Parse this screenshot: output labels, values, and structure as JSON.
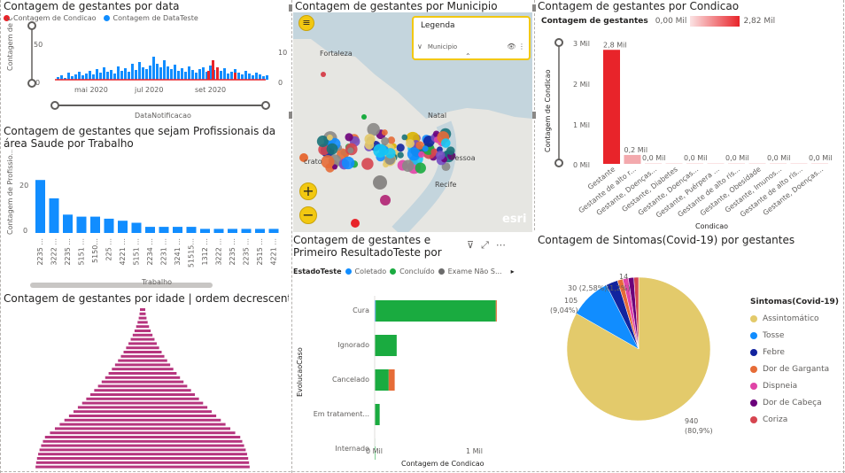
{
  "timeline": {
    "title": "Contagem de gestantes por data",
    "legend": [
      {
        "label": "Contagem de Condicao",
        "color": "#e8242a"
      },
      {
        "label": "Contagem de DataTeste",
        "color": "#118dff"
      }
    ],
    "ylabel": "Contagem de Co...",
    "yticks_left": [
      "50",
      "0"
    ],
    "yticks_right": [
      "10",
      "0"
    ],
    "xticks": [
      "mai 2020",
      "jul 2020",
      "set 2020"
    ],
    "xlabel": "DataNotificacao"
  },
  "map": {
    "title": "Contagem de gestantes por Municipio",
    "legend_title": "Legenda",
    "legend_item": "Municipio",
    "labels": [
      "Fortaleza",
      "Natal",
      "Pessoa",
      "Recife",
      "crato"
    ],
    "brand": "esri",
    "zoom_in": "+",
    "zoom_out": "−"
  },
  "condicao": {
    "title": "Contagem de gestantes por Condicao",
    "scale_label": "Contagem de gestantes",
    "scale_min": "0,00 Mil",
    "scale_max": "2,82 Mil",
    "ylabel": "Contagem de Condicao",
    "xlabel": "Condicao",
    "yticks": [
      "3 Mil",
      "2 Mil",
      "1 Mil",
      "0 Mil"
    ],
    "data_labels": [
      "2,8 Mil",
      "0,2 Mil",
      "0,0 Mil",
      "0,0 Mil",
      "0,0 Mil",
      "0,0 Mil",
      "0,0 Mil",
      "0,0 Mil",
      "0,0 Mil",
      "0,0 Mil"
    ],
    "categories": [
      "Gestante",
      "Gestante de alto r...",
      "Gestante, Doenças...",
      "Gestante, Diabetes",
      "Gestante, Doenças...",
      "Gestante, Puérpera ...",
      "Gestante de alto ris...",
      "Gestante, Obesidade",
      "Gestante, Imunos...",
      "Gestante de alto ris...",
      "Gestante, Doenças..."
    ]
  },
  "trabalho": {
    "title": "Contagem de gestantes que sejam Profissionais da área Saude por Trabalho",
    "ylabel": "Contagem de Profissio...",
    "yticks": [
      "20",
      "0"
    ],
    "xlabel": "Trabalho",
    "categories": [
      "2235 ...",
      "3222 ...",
      "2235 ...",
      "5151 ...",
      "5150...",
      "225 ...",
      "4221 ...",
      "5151 ...",
      "2234 ...",
      "2231 ...",
      "3241 ...",
      "51515...",
      "1312 ...",
      "3222 ...",
      "2235 ...",
      "2235 ...",
      "2515 ...",
      "4221 ..."
    ]
  },
  "idade": {
    "title": "Contagem de gestantes por idade | ordem decrescente"
  },
  "evolucao": {
    "title": "Contagem de gestantes e Primeiro ResultadoTeste por EstadoTeste e EvolucaoCaso",
    "legend_label": "EstadoTeste",
    "legend": [
      {
        "label": "Coletado",
        "color": "#118dff"
      },
      {
        "label": "Concluído",
        "color": "#1aab40"
      },
      {
        "label": "Exame Não S...",
        "color": "#6b6b6b"
      }
    ],
    "ylabel": "EvolucaoCaso",
    "xlabel": "Contagem de Condicao",
    "categories": [
      "Cura",
      "Ignorado",
      "Cancelado",
      "Em tratament...",
      "Internado"
    ],
    "xticks": [
      "0 Mil",
      "1 Mil"
    ]
  },
  "sintomas": {
    "title": "Contagem de Sintomas(Covid-19) por gestantes",
    "legend_title": "Sintomas(Covid-19)",
    "items": [
      {
        "label": "Assintomático",
        "color": "#e3ca6b"
      },
      {
        "label": "Tosse",
        "color": "#118dff"
      },
      {
        "label": "Febre",
        "color": "#12239e"
      },
      {
        "label": "Dor de Garganta",
        "color": "#e66c37"
      },
      {
        "label": "Dispneia",
        "color": "#e044a7"
      },
      {
        "label": "Dor de Cabeça",
        "color": "#6b007b"
      },
      {
        "label": "Coriza",
        "color": "#d64550"
      }
    ],
    "labels": {
      "big_value": "940",
      "big_pct": "(80,9%)",
      "tosse_value": "105",
      "tosse_pct": "(9,04%)",
      "febre": "30 (2,58%)",
      "garganta": "(1,2%)",
      "top": "14"
    }
  }
}
